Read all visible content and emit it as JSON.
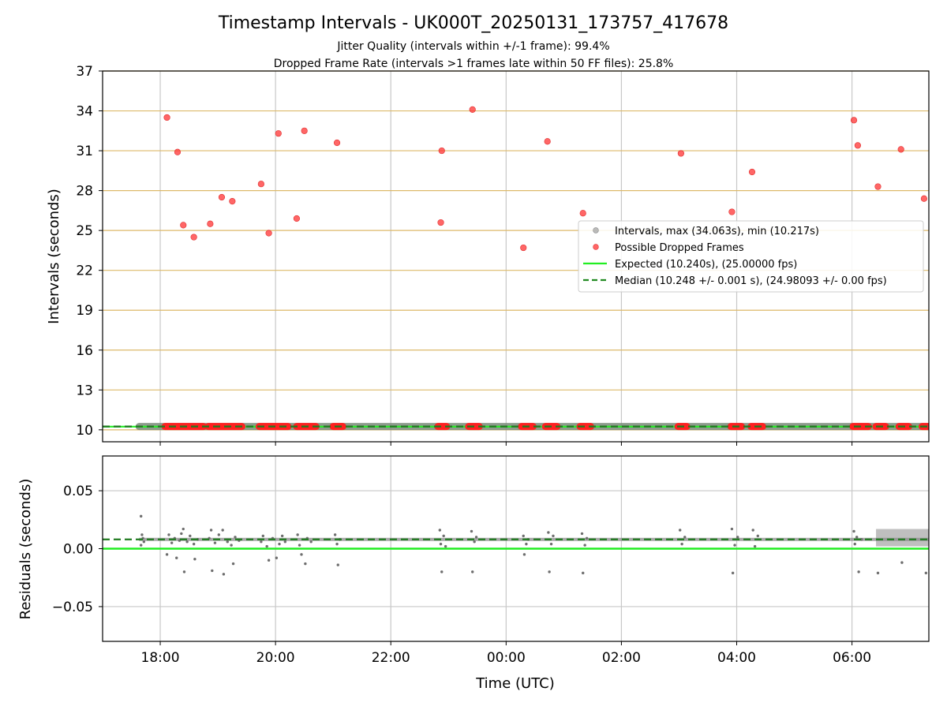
{
  "chart_data": {
    "title": "Timestamp Intervals - UK000T_20250131_173757_417678",
    "subtitle_lines": [
      "Jitter Quality (intervals within +/-1 frame): 99.4%",
      "Dropped Frame Rate (intervals >1 frames late within 50 FF files): 25.8%"
    ],
    "type": "scatter",
    "x_axis": {
      "label": "Time (UTC)",
      "range": [
        "2025-01-31 17:00",
        "2025-02-01 07:20"
      ],
      "ticks": [
        {
          "t": "2025-01-31 18:00",
          "label": "18:00"
        },
        {
          "t": "2025-01-31 20:00",
          "label": "20:00"
        },
        {
          "t": "2025-01-31 22:00",
          "label": "22:00"
        },
        {
          "t": "2025-02-01 00:00",
          "label": "00:00"
        },
        {
          "t": "2025-02-01 02:00",
          "label": "02:00"
        },
        {
          "t": "2025-02-01 04:00",
          "label": "04:00"
        },
        {
          "t": "2025-02-01 06:00",
          "label": "06:00"
        }
      ]
    },
    "panels": [
      {
        "name": "intervals",
        "ylabel": "Intervals (seconds)",
        "ylim": [
          9.1,
          37
        ],
        "yticks": [
          10,
          13,
          16,
          19,
          22,
          25,
          28,
          31,
          34,
          37
        ],
        "grid": "horizontal goldenrod lines, vertical grey lines",
        "expected": 10.24,
        "median": 10.248,
        "legend": {
          "placement": "right",
          "entries": [
            {
              "label": "Intervals, max (34.063s), min (10.217s)",
              "kind": "marker",
              "color": "#9e9e9e"
            },
            {
              "label": "Possible Dropped Frames",
              "kind": "marker",
              "color": "#ff4040"
            },
            {
              "label": "Expected (10.240s), (25.00000 fps)",
              "kind": "line",
              "color": "#22ee22"
            },
            {
              "label": "Median (10.248 +/- 0.001 s), (24.98093 +/- 0.00 fps)",
              "kind": "dashed",
              "color": "#228b22"
            }
          ]
        },
        "normal_intervals": {
          "start": "2025-01-31 17:38",
          "end": "2025-02-01 07:20",
          "value": 10.25
        },
        "dropped_frames": [
          {
            "t": "2025-01-31 18:07",
            "y": 33.5
          },
          {
            "t": "2025-01-31 18:18",
            "y": 30.9
          },
          {
            "t": "2025-01-31 18:24",
            "y": 25.4
          },
          {
            "t": "2025-01-31 18:35",
            "y": 24.5
          },
          {
            "t": "2025-01-31 18:52",
            "y": 25.5
          },
          {
            "t": "2025-01-31 19:04",
            "y": 27.5
          },
          {
            "t": "2025-01-31 19:15",
            "y": 27.2
          },
          {
            "t": "2025-01-31 19:45",
            "y": 28.5
          },
          {
            "t": "2025-01-31 19:53",
            "y": 24.8
          },
          {
            "t": "2025-01-31 20:03",
            "y": 32.3
          },
          {
            "t": "2025-01-31 20:22",
            "y": 25.9
          },
          {
            "t": "2025-01-31 20:30",
            "y": 32.5
          },
          {
            "t": "2025-01-31 21:04",
            "y": 31.6
          },
          {
            "t": "2025-01-31 22:52",
            "y": 25.6
          },
          {
            "t": "2025-01-31 22:53",
            "y": 31.0
          },
          {
            "t": "2025-01-31 23:25",
            "y": 34.1
          },
          {
            "t": "2025-02-01 00:18",
            "y": 23.7
          },
          {
            "t": "2025-02-01 00:43",
            "y": 31.7
          },
          {
            "t": "2025-02-01 01:20",
            "y": 26.3
          },
          {
            "t": "2025-02-01 03:02",
            "y": 30.8
          },
          {
            "t": "2025-02-01 03:55",
            "y": 26.4
          },
          {
            "t": "2025-02-01 04:16",
            "y": 29.4
          },
          {
            "t": "2025-02-01 06:02",
            "y": 33.3
          },
          {
            "t": "2025-02-01 06:06",
            "y": 31.4
          },
          {
            "t": "2025-02-01 06:27",
            "y": 28.3
          },
          {
            "t": "2025-02-01 06:51",
            "y": 31.1
          },
          {
            "t": "2025-02-01 07:15",
            "y": 27.4
          }
        ],
        "dropped_clusters_at_baseline": [
          {
            "start": "2025-01-31 18:05",
            "end": "2025-01-31 18:45"
          },
          {
            "start": "2025-01-31 18:50",
            "end": "2025-01-31 19:25"
          },
          {
            "start": "2025-01-31 19:43",
            "end": "2025-01-31 20:13"
          },
          {
            "start": "2025-01-31 20:22",
            "end": "2025-01-31 20:42"
          },
          {
            "start": "2025-01-31 21:00",
            "end": "2025-01-31 21:10"
          },
          {
            "start": "2025-01-31 22:49",
            "end": "2025-01-31 22:58"
          },
          {
            "start": "2025-01-31 23:21",
            "end": "2025-01-31 23:32"
          },
          {
            "start": "2025-02-01 00:16",
            "end": "2025-02-01 00:28"
          },
          {
            "start": "2025-02-01 00:41",
            "end": "2025-02-01 00:53"
          },
          {
            "start": "2025-02-01 01:17",
            "end": "2025-02-01 01:28"
          },
          {
            "start": "2025-02-01 02:59",
            "end": "2025-02-01 03:08"
          },
          {
            "start": "2025-02-01 03:54",
            "end": "2025-02-01 04:05"
          },
          {
            "start": "2025-02-01 04:15",
            "end": "2025-02-01 04:27"
          },
          {
            "start": "2025-02-01 06:01",
            "end": "2025-02-01 06:17"
          },
          {
            "start": "2025-02-01 06:25",
            "end": "2025-02-01 06:35"
          },
          {
            "start": "2025-02-01 06:49",
            "end": "2025-02-01 06:59"
          },
          {
            "start": "2025-02-01 07:13",
            "end": "2025-02-01 07:20"
          }
        ]
      },
      {
        "name": "residuals",
        "ylabel": "Residuals (seconds)",
        "ylim": [
          -0.08,
          0.08
        ],
        "yticks": [
          {
            "v": 0.05,
            "label": "0.05"
          },
          {
            "v": 0.0,
            "label": "0.00"
          },
          {
            "v": -0.05,
            "label": "−0.05"
          }
        ],
        "grid": "light grey lines",
        "expected": 0.0,
        "median": 0.008,
        "points": [
          {
            "t": "2025-01-31 17:40",
            "y": 0.028
          },
          {
            "t": "2025-01-31 17:41",
            "y": 0.012
          },
          {
            "t": "2025-01-31 17:42",
            "y": 0.009
          },
          {
            "t": "2025-01-31 17:43",
            "y": 0.006
          },
          {
            "t": "2025-01-31 17:40",
            "y": 0.003
          },
          {
            "t": "2025-01-31 18:07",
            "y": -0.005
          },
          {
            "t": "2025-01-31 18:09",
            "y": 0.012
          },
          {
            "t": "2025-01-31 18:12",
            "y": 0.005
          },
          {
            "t": "2025-01-31 18:15",
            "y": 0.009
          },
          {
            "t": "2025-01-31 18:17",
            "y": -0.008
          },
          {
            "t": "2025-01-31 18:20",
            "y": 0.007
          },
          {
            "t": "2025-01-31 18:22",
            "y": 0.013
          },
          {
            "t": "2025-01-31 18:24",
            "y": 0.017
          },
          {
            "t": "2025-01-31 18:25",
            "y": -0.02
          },
          {
            "t": "2025-01-31 18:28",
            "y": 0.006
          },
          {
            "t": "2025-01-31 18:31",
            "y": 0.011
          },
          {
            "t": "2025-01-31 18:35",
            "y": 0.004
          },
          {
            "t": "2025-01-31 18:36",
            "y": -0.009
          },
          {
            "t": "2025-01-31 18:39",
            "y": 0.008
          },
          {
            "t": "2025-01-31 18:51",
            "y": 0.009
          },
          {
            "t": "2025-01-31 18:53",
            "y": 0.016
          },
          {
            "t": "2025-01-31 18:54",
            "y": -0.019
          },
          {
            "t": "2025-01-31 18:57",
            "y": 0.005
          },
          {
            "t": "2025-01-31 19:01",
            "y": 0.012
          },
          {
            "t": "2025-01-31 19:05",
            "y": 0.016
          },
          {
            "t": "2025-01-31 19:06",
            "y": -0.022
          },
          {
            "t": "2025-01-31 19:10",
            "y": 0.006
          },
          {
            "t": "2025-01-31 19:14",
            "y": 0.003
          },
          {
            "t": "2025-01-31 19:16",
            "y": -0.013
          },
          {
            "t": "2025-01-31 19:18",
            "y": 0.01
          },
          {
            "t": "2025-01-31 19:22",
            "y": 0.007
          },
          {
            "t": "2025-01-31 19:45",
            "y": 0.006
          },
          {
            "t": "2025-01-31 19:47",
            "y": 0.011
          },
          {
            "t": "2025-01-31 19:51",
            "y": 0.002
          },
          {
            "t": "2025-01-31 19:53",
            "y": -0.01
          },
          {
            "t": "2025-01-31 19:57",
            "y": 0.009
          },
          {
            "t": "2025-01-31 20:01",
            "y": -0.008
          },
          {
            "t": "2025-01-31 20:04",
            "y": 0.004
          },
          {
            "t": "2025-01-31 20:07",
            "y": 0.011
          },
          {
            "t": "2025-01-31 20:10",
            "y": 0.006
          },
          {
            "t": "2025-01-31 20:23",
            "y": 0.012
          },
          {
            "t": "2025-01-31 20:25",
            "y": 0.003
          },
          {
            "t": "2025-01-31 20:27",
            "y": -0.005
          },
          {
            "t": "2025-01-31 20:31",
            "y": -0.013
          },
          {
            "t": "2025-01-31 20:33",
            "y": 0.009
          },
          {
            "t": "2025-01-31 20:37",
            "y": 0.006
          },
          {
            "t": "2025-01-31 21:02",
            "y": 0.012
          },
          {
            "t": "2025-01-31 21:04",
            "y": 0.004
          },
          {
            "t": "2025-01-31 21:05",
            "y": -0.014
          },
          {
            "t": "2025-01-31 21:07",
            "y": 0.008
          },
          {
            "t": "2025-01-31 22:51",
            "y": 0.016
          },
          {
            "t": "2025-01-31 22:52",
            "y": 0.004
          },
          {
            "t": "2025-01-31 22:53",
            "y": -0.02
          },
          {
            "t": "2025-01-31 22:55",
            "y": 0.011
          },
          {
            "t": "2025-01-31 22:57",
            "y": 0.002
          },
          {
            "t": "2025-01-31 23:24",
            "y": 0.015
          },
          {
            "t": "2025-01-31 23:25",
            "y": -0.02
          },
          {
            "t": "2025-01-31 23:27",
            "y": 0.006
          },
          {
            "t": "2025-01-31 23:29",
            "y": 0.01
          },
          {
            "t": "2025-02-01 00:18",
            "y": 0.011
          },
          {
            "t": "2025-02-01 00:19",
            "y": -0.005
          },
          {
            "t": "2025-02-01 00:21",
            "y": 0.004
          },
          {
            "t": "2025-02-01 00:23",
            "y": 0.008
          },
          {
            "t": "2025-02-01 00:44",
            "y": 0.014
          },
          {
            "t": "2025-02-01 00:45",
            "y": -0.02
          },
          {
            "t": "2025-02-01 00:47",
            "y": 0.004
          },
          {
            "t": "2025-02-01 00:49",
            "y": 0.011
          },
          {
            "t": "2025-02-01 01:19",
            "y": 0.013
          },
          {
            "t": "2025-02-01 01:20",
            "y": -0.021
          },
          {
            "t": "2025-02-01 01:22",
            "y": 0.003
          },
          {
            "t": "2025-02-01 01:24",
            "y": 0.009
          },
          {
            "t": "2025-02-01 03:01",
            "y": 0.016
          },
          {
            "t": "2025-02-01 03:03",
            "y": 0.004
          },
          {
            "t": "2025-02-01 03:06",
            "y": 0.01
          },
          {
            "t": "2025-02-01 03:55",
            "y": 0.017
          },
          {
            "t": "2025-02-01 03:56",
            "y": -0.021
          },
          {
            "t": "2025-02-01 03:58",
            "y": 0.003
          },
          {
            "t": "2025-02-01 04:01",
            "y": 0.01
          },
          {
            "t": "2025-02-01 04:17",
            "y": 0.016
          },
          {
            "t": "2025-02-01 04:19",
            "y": 0.002
          },
          {
            "t": "2025-02-01 04:22",
            "y": 0.011
          },
          {
            "t": "2025-02-01 06:02",
            "y": 0.015
          },
          {
            "t": "2025-02-01 06:03",
            "y": 0.004
          },
          {
            "t": "2025-02-01 06:05",
            "y": 0.01
          },
          {
            "t": "2025-02-01 06:07",
            "y": -0.02
          },
          {
            "t": "2025-02-01 06:10",
            "y": 0.008
          },
          {
            "t": "2025-02-01 06:27",
            "y": -0.021
          },
          {
            "t": "2025-02-01 06:52",
            "y": -0.012
          },
          {
            "t": "2025-02-01 07:17",
            "y": -0.021
          }
        ],
        "dense_band": {
          "start": "2025-02-01 06:25",
          "end": "2025-02-01 07:20",
          "ymin": 0.002,
          "ymax": 0.017
        }
      }
    ]
  }
}
